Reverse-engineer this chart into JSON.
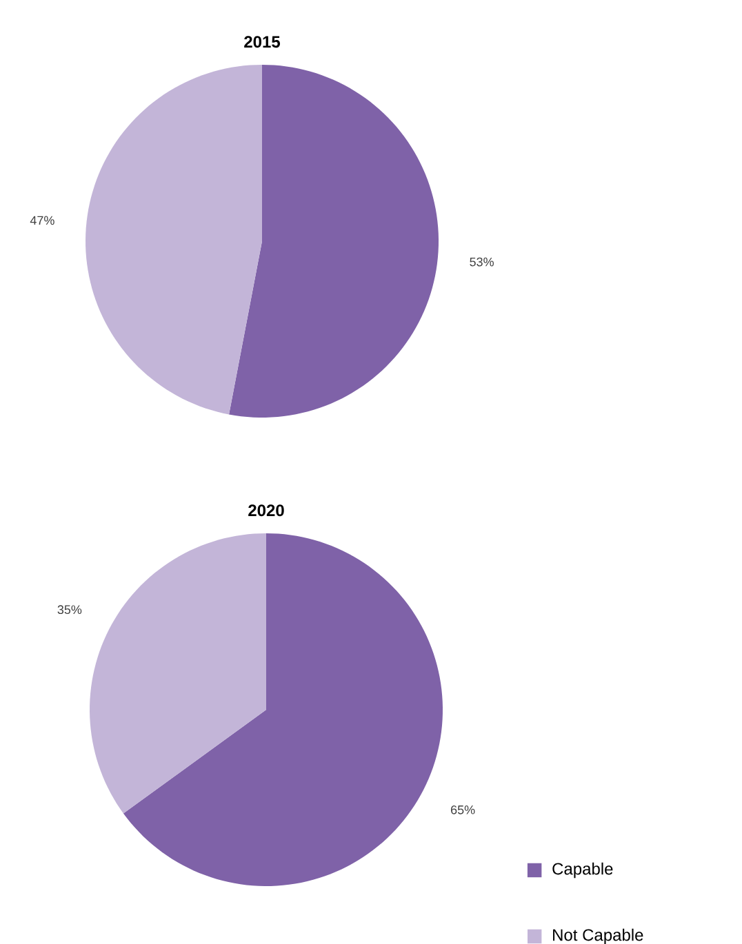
{
  "chart_data": [
    {
      "type": "pie",
      "title": "2015",
      "categories": [
        null,
        null
      ],
      "values": [
        53,
        47
      ],
      "value_labels": [
        "53%",
        "47%"
      ],
      "colors": [
        "#7f62a8",
        "#c3b5d8"
      ],
      "legend": false
    },
    {
      "type": "pie",
      "title": "2020",
      "categories": [
        "Capable",
        "Not Capable"
      ],
      "values": [
        65,
        35
      ],
      "value_labels": [
        "65%",
        "35%"
      ],
      "colors": [
        "#7f62a8",
        "#c3b5d8"
      ],
      "legend": "bottom right"
    }
  ]
}
